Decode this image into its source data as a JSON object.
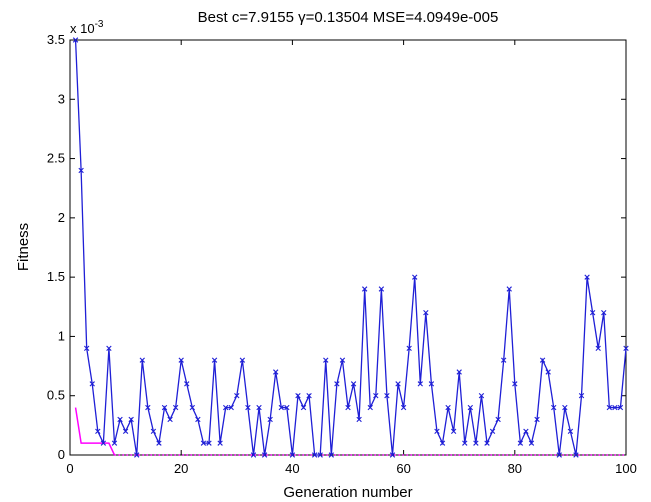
{
  "chart_data": {
    "type": "line",
    "title": "Best c=7.9155 γ=0.13504 MSE=4.0949e-005",
    "xlabel": "Generation number",
    "ylabel": "Fitness",
    "y_exponent_label": "x 10",
    "y_exponent_power": "-3",
    "xlim": [
      0,
      100
    ],
    "ylim": [
      0,
      3.5
    ],
    "xticks": [
      0,
      20,
      40,
      60,
      80,
      100
    ],
    "yticks": [
      0,
      0.5,
      1,
      1.5,
      2,
      2.5,
      3,
      3.5
    ],
    "xtick_labels": [
      "0",
      "20",
      "40",
      "60",
      "80",
      "100"
    ],
    "ytick_labels": [
      "0",
      "0.5",
      "1",
      "1.5",
      "2",
      "2.5",
      "3",
      "3.5"
    ],
    "grid": false,
    "legend": false,
    "x": [
      1,
      2,
      3,
      4,
      5,
      6,
      7,
      8,
      9,
      10,
      11,
      12,
      13,
      14,
      15,
      16,
      17,
      18,
      19,
      20,
      21,
      22,
      23,
      24,
      25,
      26,
      27,
      28,
      29,
      30,
      31,
      32,
      33,
      34,
      35,
      36,
      37,
      38,
      39,
      40,
      41,
      42,
      43,
      44,
      45,
      46,
      47,
      48,
      49,
      50,
      51,
      52,
      53,
      54,
      55,
      56,
      57,
      58,
      59,
      60,
      61,
      62,
      63,
      64,
      65,
      66,
      67,
      68,
      69,
      70,
      71,
      72,
      73,
      74,
      75,
      76,
      77,
      78,
      79,
      80,
      81,
      82,
      83,
      84,
      85,
      86,
      87,
      88,
      89,
      90,
      91,
      92,
      93,
      94,
      95,
      96,
      97,
      98,
      99,
      100
    ],
    "series": [
      {
        "color": "#1f1fd6",
        "marker": "x",
        "values": [
          3.5,
          2.4,
          0.9,
          0.6,
          0.2,
          0.1,
          0.9,
          0.1,
          0.3,
          0.2,
          0.3,
          0.0,
          0.8,
          0.4,
          0.2,
          0.1,
          0.4,
          0.3,
          0.4,
          0.8,
          0.6,
          0.4,
          0.3,
          0.1,
          0.1,
          0.8,
          0.1,
          0.4,
          0.4,
          0.5,
          0.8,
          0.4,
          0.0,
          0.4,
          0.0,
          0.3,
          0.7,
          0.4,
          0.4,
          0.0,
          0.5,
          0.4,
          0.5,
          0.0,
          0.0,
          0.8,
          0.0,
          0.6,
          0.8,
          0.4,
          0.6,
          0.3,
          1.4,
          0.4,
          0.5,
          1.4,
          0.5,
          0.0,
          0.6,
          0.4,
          0.9,
          1.5,
          0.6,
          1.2,
          0.6,
          0.2,
          0.1,
          0.4,
          0.2,
          0.7,
          0.1,
          0.4,
          0.1,
          0.5,
          0.1,
          0.2,
          0.3,
          0.8,
          1.4,
          0.6,
          0.1,
          0.2,
          0.1,
          0.3,
          0.8,
          0.7,
          0.4,
          0.0,
          0.4,
          0.2,
          0.0,
          0.5,
          1.5,
          1.2,
          0.9,
          1.2,
          0.4,
          0.4,
          0.4,
          0.9
        ]
      },
      {
        "color": "#ff00ff",
        "line_style": "solid+dotted",
        "values": [
          0.4,
          0.1,
          0.1,
          0.1,
          0.1,
          0.1,
          0.1,
          0,
          0,
          0,
          0,
          0,
          0,
          0,
          0,
          0,
          0,
          0,
          0,
          0,
          0,
          0,
          0,
          0,
          0,
          0,
          0,
          0,
          0,
          0,
          0,
          0,
          0,
          0,
          0,
          0,
          0,
          0,
          0,
          0,
          0,
          0,
          0,
          0,
          0,
          0,
          0,
          0,
          0,
          0,
          0,
          0,
          0,
          0,
          0,
          0,
          0,
          0,
          0,
          0,
          0,
          0,
          0,
          0,
          0,
          0,
          0,
          0,
          0,
          0,
          0,
          0,
          0,
          0,
          0,
          0,
          0,
          0,
          0,
          0,
          0,
          0,
          0,
          0,
          0,
          0,
          0,
          0,
          0,
          0,
          0,
          0,
          0,
          0,
          0,
          0,
          0,
          0,
          0,
          0
        ]
      }
    ]
  }
}
